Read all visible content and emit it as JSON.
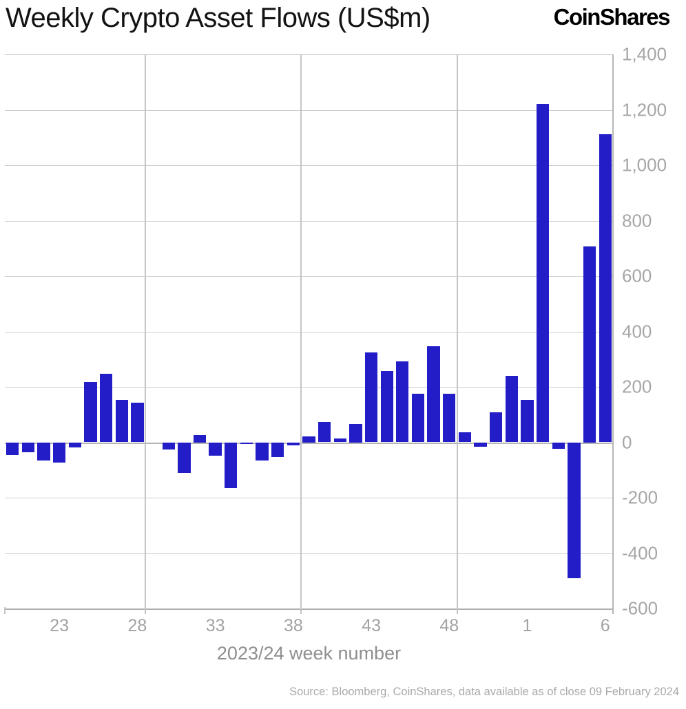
{
  "header": {
    "title": "Weekly Crypto Asset Flows (US$m)",
    "logo": "CoinShares"
  },
  "footer": {
    "source": "Source: Bloomberg, CoinShares, data available as of close 09 February 2024"
  },
  "colors": {
    "bar": "#231dc7",
    "gridline": "#cdcdcd",
    "axis_line": "#b5b5b5",
    "tick_label": "#a6a6a6",
    "axis_title": "#8f8f8f",
    "title": "#131313",
    "source": "#a9a9a9"
  },
  "chart_data": {
    "type": "bar",
    "title": "Weekly Crypto Asset Flows (US$m)",
    "xlabel": "2023/24 week number",
    "ylabel": "",
    "ylim": [
      -600,
      1400
    ],
    "ytick_step": 200,
    "ytick_labels": [
      "1,400",
      "1,200",
      "1,000",
      "800",
      "600",
      "400",
      "200",
      "0",
      "-200",
      "-400",
      "-600"
    ],
    "xtick_weeks": [
      "23",
      "28",
      "33",
      "38",
      "43",
      "48",
      "1",
      "6"
    ],
    "grid": {
      "horizontal": true,
      "vertical_after_weeks": [
        "28",
        "38",
        "48"
      ],
      "legend_position": "none"
    },
    "bar_color": "#231dc7",
    "categories": [
      "20",
      "21",
      "22",
      "23",
      "24",
      "25",
      "26",
      "27",
      "28",
      "29",
      "30",
      "31",
      "32",
      "33",
      "34",
      "35",
      "36",
      "37",
      "38",
      "39",
      "40",
      "41",
      "42",
      "43",
      "44",
      "45",
      "46",
      "47",
      "48",
      "49",
      "50",
      "51",
      "52",
      "1",
      "2",
      "3",
      "4",
      "5",
      "6"
    ],
    "values": [
      -45,
      -36,
      -65,
      -74,
      -19,
      218,
      248,
      152,
      143,
      0,
      -25,
      -110,
      26,
      -48,
      -165,
      -7,
      -65,
      -53,
      -10,
      21,
      73,
      14,
      67,
      325,
      258,
      291,
      175,
      347,
      176,
      37,
      -17,
      107,
      240,
      153,
      1222,
      -23,
      -490,
      708,
      1112
    ]
  }
}
